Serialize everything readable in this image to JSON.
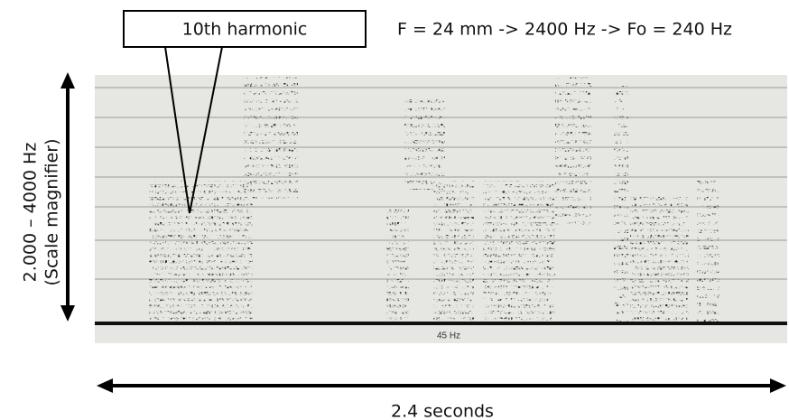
{
  "callout": {
    "label": "10th harmonic"
  },
  "formula": "F = 24 mm -> 2400 Hz -> Fo = 240 Hz",
  "y_axis": {
    "line1": "2.000 – 4000 Hz",
    "line2": "(Scale magnifier)"
  },
  "x_axis": {
    "label": "2.4 seconds"
  },
  "spectrogram": {
    "baseline_label": "45 Hz"
  }
}
